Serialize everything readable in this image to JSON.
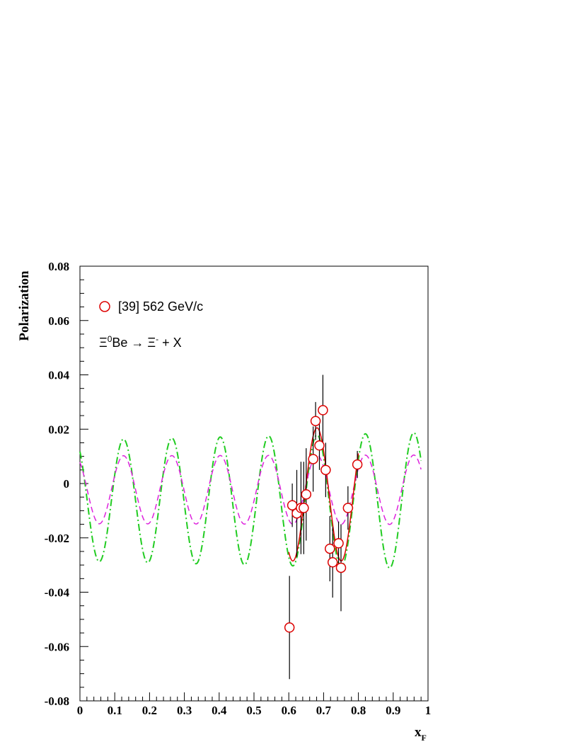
{
  "chart_data": {
    "type": "scatter",
    "xlabel_main": "x",
    "xlabel_sub": "F",
    "ylabel": "Polarization",
    "xlim": [
      0,
      1
    ],
    "ylim": [
      -0.08,
      0.08
    ],
    "xticks": [
      "0",
      "0.1",
      "0.2",
      "0.3",
      "0.4",
      "0.5",
      "0.6",
      "0.7",
      "0.8",
      "0.9",
      "1"
    ],
    "yticks": [
      "-0.08",
      "-0.06",
      "-0.04",
      "-0.02",
      "0",
      "0.02",
      "0.04",
      "0.06",
      "0.08"
    ],
    "legend_label": "[39]  562 GeV/c",
    "reaction": {
      "xi0": "Ξ",
      "sup0": "0",
      "be_arrow": "Be → Ξ",
      "supminus": "-",
      "tail": " + X"
    },
    "colors": {
      "data": "#dd0000",
      "fit": "#dd0000",
      "green": "#22cc22",
      "magenta": "#dd22dd",
      "errorbar": "#000000"
    },
    "series": [
      {
        "name": "[39]  562 GeV/c",
        "points": [
          {
            "x": 0.602,
            "y": -0.053,
            "err": 0.019
          },
          {
            "x": 0.61,
            "y": -0.008,
            "err": 0.008
          },
          {
            "x": 0.623,
            "y": -0.011,
            "err": 0.016
          },
          {
            "x": 0.635,
            "y": -0.009,
            "err": 0.017
          },
          {
            "x": 0.643,
            "y": -0.009,
            "err": 0.017
          },
          {
            "x": 0.65,
            "y": -0.004,
            "err": 0.017
          },
          {
            "x": 0.67,
            "y": 0.009,
            "err": 0.012
          },
          {
            "x": 0.677,
            "y": 0.023,
            "err": 0.007
          },
          {
            "x": 0.688,
            "y": 0.014,
            "err": 0.009
          },
          {
            "x": 0.698,
            "y": 0.027,
            "err": 0.013
          },
          {
            "x": 0.706,
            "y": 0.005,
            "err": 0.01
          },
          {
            "x": 0.718,
            "y": -0.024,
            "err": 0.012
          },
          {
            "x": 0.726,
            "y": -0.029,
            "err": 0.013
          },
          {
            "x": 0.743,
            "y": -0.022,
            "err": 0.008
          },
          {
            "x": 0.75,
            "y": -0.031,
            "err": 0.016
          },
          {
            "x": 0.77,
            "y": -0.009,
            "err": 0.008
          },
          {
            "x": 0.797,
            "y": 0.007,
            "err": 0.005
          }
        ]
      }
    ],
    "curves": {
      "green_dashdot": {
        "offset": -0.0063,
        "amp_start": 0.0223,
        "amp_end": 0.0251,
        "period": 0.139,
        "phase_x": 0.0556
      },
      "magenta_dashed": {
        "offset": -0.0023,
        "amp_start": 0.0125,
        "amp_end": 0.0128,
        "period": 0.139,
        "phase_x": 0.0556
      },
      "red_fit": {
        "xmin": 0.6,
        "xmax": 0.8
      }
    }
  }
}
